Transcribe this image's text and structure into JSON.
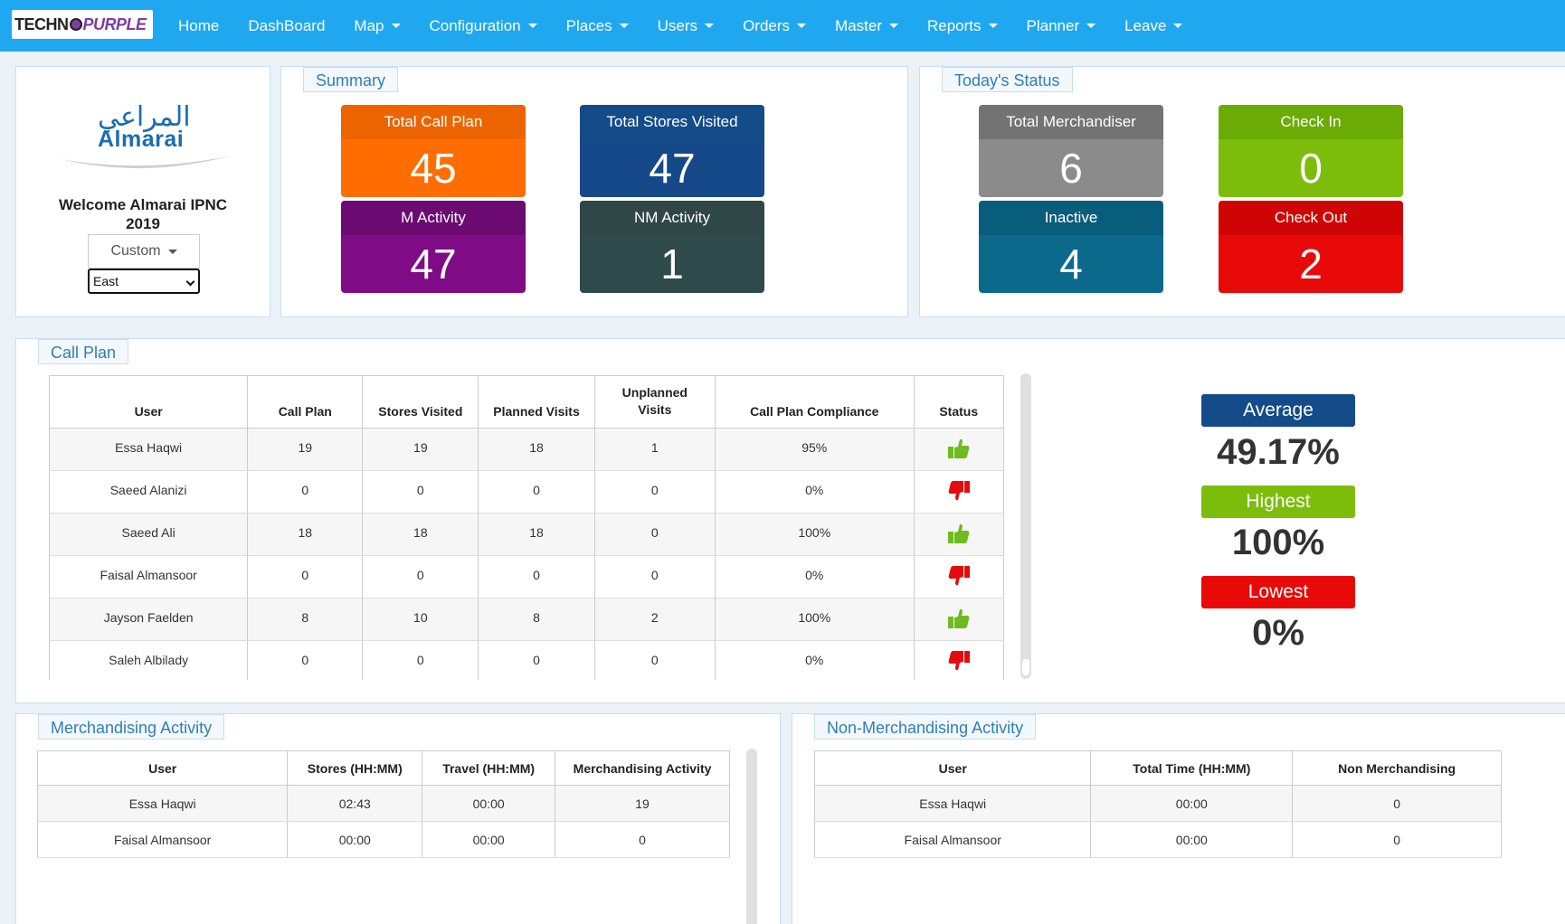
{
  "brand": {
    "part1": "TECHN",
    "part2": "PURPLE"
  },
  "nav": [
    {
      "label": "Home",
      "dropdown": false
    },
    {
      "label": "DashBoard",
      "dropdown": false
    },
    {
      "label": "Map",
      "dropdown": true
    },
    {
      "label": "Configuration",
      "dropdown": true
    },
    {
      "label": "Places",
      "dropdown": true
    },
    {
      "label": "Users",
      "dropdown": true
    },
    {
      "label": "Orders",
      "dropdown": true
    },
    {
      "label": "Master",
      "dropdown": true
    },
    {
      "label": "Reports",
      "dropdown": true
    },
    {
      "label": "Planner",
      "dropdown": true
    },
    {
      "label": "Leave",
      "dropdown": true
    }
  ],
  "welcome": {
    "logo_ar": "المراعي",
    "logo_en": "Almarai",
    "line1": "Welcome Almarai IPNC",
    "line2": "2019",
    "custom_label": "Custom",
    "region_value": "East"
  },
  "summary": {
    "title": "Summary",
    "tiles": [
      {
        "label": "Total Call Plan",
        "value": "45",
        "head": "#ec6400",
        "body": "#ff6d00"
      },
      {
        "label": "Total Stores Visited",
        "value": "47",
        "head": "#134c88",
        "body": "#16498a"
      },
      {
        "label": "M Activity",
        "value": "47",
        "head": "#6b0b72",
        "body": "#7f0b86"
      },
      {
        "label": "NM Activity",
        "value": "1",
        "head": "#2f4746",
        "body": "#2e4a4a"
      }
    ]
  },
  "today": {
    "title": "Today's Status",
    "tiles": [
      {
        "label": "Total Merchandiser",
        "value": "6",
        "head": "#737373",
        "body": "#8b8b8b"
      },
      {
        "label": "Check In",
        "value": "0",
        "head": "#6aac05",
        "body": "#7cbd0b"
      },
      {
        "label": "Inactive",
        "value": "4",
        "head": "#085c7c",
        "body": "#0b6a8c"
      },
      {
        "label": "Check Out",
        "value": "2",
        "head": "#cf0505",
        "body": "#e80909"
      }
    ]
  },
  "callplan": {
    "title": "Call Plan",
    "headers": [
      "User",
      "Call Plan",
      "Stores Visited",
      "Planned Visits",
      "Unplanned Visits",
      "Call Plan Compliance",
      "Status"
    ],
    "rows": [
      {
        "user": "Essa Haqwi",
        "plan": "19",
        "visited": "19",
        "planned": "18",
        "unplanned": "1",
        "compliance": "95%",
        "status": "up"
      },
      {
        "user": "Saeed Alanizi",
        "plan": "0",
        "visited": "0",
        "planned": "0",
        "unplanned": "0",
        "compliance": "0%",
        "status": "down"
      },
      {
        "user": "Saeed Ali",
        "plan": "18",
        "visited": "18",
        "planned": "18",
        "unplanned": "0",
        "compliance": "100%",
        "status": "up"
      },
      {
        "user": "Faisal Almansoor",
        "plan": "0",
        "visited": "0",
        "planned": "0",
        "unplanned": "0",
        "compliance": "0%",
        "status": "down"
      },
      {
        "user": "Jayson Faelden",
        "plan": "8",
        "visited": "10",
        "planned": "8",
        "unplanned": "2",
        "compliance": "100%",
        "status": "up"
      },
      {
        "user": "Saleh Albilady",
        "plan": "0",
        "visited": "0",
        "planned": "0",
        "unplanned": "0",
        "compliance": "0%",
        "status": "down"
      }
    ],
    "stats": {
      "average_label": "Average",
      "average_value": "49.17%",
      "highest_label": "Highest",
      "highest_value": "100%",
      "lowest_label": "Lowest",
      "lowest_value": "0%"
    }
  },
  "merch": {
    "title": "Merchandising Activity",
    "headers": [
      "User",
      "Stores (HH:MM)",
      "Travel (HH:MM)",
      "Merchandising Activity"
    ],
    "rows": [
      [
        "Essa Haqwi",
        "02:43",
        "00:00",
        "19"
      ],
      [
        "Faisal Almansoor",
        "00:00",
        "00:00",
        "0"
      ]
    ]
  },
  "nonmerch": {
    "title": "Non-Merchandising Activity",
    "headers": [
      "User",
      "Total Time (HH:MM)",
      "Non Merchandising"
    ],
    "rows": [
      [
        "Essa Haqwi",
        "00:00",
        "0"
      ],
      [
        "Faisal Almansoor",
        "00:00",
        "0"
      ]
    ]
  },
  "colors": {
    "nav": "#1fa8f0",
    "thumb_up": "#6dbb1e",
    "thumb_down": "#e20c0c",
    "avg": "#134c88",
    "high": "#7cbd0b",
    "low": "#e80909"
  }
}
